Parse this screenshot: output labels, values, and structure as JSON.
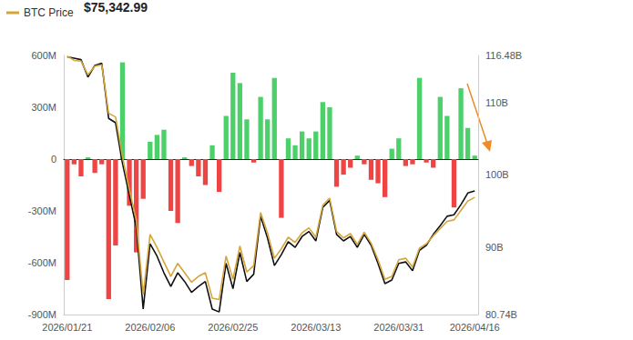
{
  "chart_data": {
    "type": "bar",
    "annotation": "$75,342.99",
    "legend": "top-left",
    "grid": false,
    "categories": [
      "2026/01/21",
      null,
      null,
      null,
      null,
      null,
      null,
      null,
      null,
      null,
      null,
      null,
      "2026/02/06",
      null,
      null,
      null,
      null,
      null,
      null,
      null,
      null,
      null,
      null,
      null,
      "2026/02/25",
      null,
      null,
      null,
      null,
      null,
      null,
      null,
      null,
      null,
      null,
      null,
      "2026/03/13",
      null,
      null,
      null,
      null,
      null,
      null,
      null,
      null,
      null,
      null,
      null,
      "2026/03/31",
      null,
      null,
      null,
      null,
      null,
      null,
      null,
      null,
      null,
      null,
      "2026/04/16"
    ],
    "series": [
      {
        "type": "bar",
        "values": [
          -700,
          -30,
          -100,
          10,
          -80,
          -30,
          -810,
          -500,
          560,
          -270,
          -540,
          -230,
          100,
          140,
          170,
          -300,
          -370,
          10,
          -40,
          -100,
          -150,
          80,
          -190,
          250,
          500,
          440,
          230,
          -20,
          360,
          230,
          470,
          -340,
          120,
          80,
          160,
          120,
          160,
          330,
          300,
          -160,
          -90,
          -50,
          20,
          -30,
          -120,
          -140,
          -220,
          60,
          120,
          -40,
          -30,
          470,
          -20,
          -50,
          360,
          250,
          -280,
          410,
          180,
          20
        ],
        "colors": [
          "#ef4444",
          "#ef4444",
          "#ef4444",
          "#4cd06a",
          "#ef4444",
          "#ef4444",
          "#ef4444",
          "#ef4444",
          "#4cd06a",
          "#ef4444",
          "#ef4444",
          "#ef4444",
          "#4cd06a",
          "#4cd06a",
          "#4cd06a",
          "#ef4444",
          "#ef4444",
          "#4cd06a",
          "#ef4444",
          "#ef4444",
          "#ef4444",
          "#4cd06a",
          "#ef4444",
          "#4cd06a",
          "#4cd06a",
          "#4cd06a",
          "#4cd06a",
          "#ef4444",
          "#4cd06a",
          "#4cd06a",
          "#4cd06a",
          "#ef4444",
          "#4cd06a",
          "#4cd06a",
          "#4cd06a",
          "#4cd06a",
          "#4cd06a",
          "#4cd06a",
          "#4cd06a",
          "#ef4444",
          "#ef4444",
          "#ef4444",
          "#4cd06a",
          "#ef4444",
          "#ef4444",
          "#ef4444",
          "#ef4444",
          "#4cd06a",
          "#4cd06a",
          "#ef4444",
          "#ef4444",
          "#4cd06a",
          "#ef4444",
          "#ef4444",
          "#4cd06a",
          "#4cd06a",
          "#ef4444",
          "#4cd06a",
          "#4cd06a",
          "#4cd06a"
        ]
      },
      {
        "type": "line",
        "axis": "y2",
        "color": "#111111",
        "values": [
          116.3,
          116.1,
          115.9,
          113.5,
          115.1,
          115.4,
          107.8,
          107.2,
          101.6,
          97.2,
          92.8,
          81.5,
          90.5,
          88.8,
          86.5,
          84.6,
          86.5,
          85.3,
          83.8,
          84.6,
          85.3,
          81.5,
          81.1,
          87.8,
          84.3,
          89.3,
          85.3,
          86.3,
          94.3,
          91.3,
          87.5,
          89.0,
          90.8,
          90.0,
          91.5,
          92.2,
          90.9,
          95.5,
          96.5,
          91.8,
          90.9,
          91.5,
          90.0,
          91.8,
          90.3,
          87.8,
          85.0,
          85.5,
          87.8,
          88.0,
          86.8,
          89.6,
          90.3,
          91.8,
          93.0,
          94.3,
          94.5,
          95.9,
          97.5,
          97.8
        ]
      },
      {
        "name": "BTC Price",
        "type": "line",
        "axis": "y2",
        "color": "#d4a53a",
        "values": [
          116.4,
          115.8,
          115.7,
          113.8,
          115.0,
          115.2,
          108.5,
          108.0,
          102.5,
          98.0,
          93.8,
          83.5,
          91.8,
          90.0,
          88.0,
          86.0,
          87.8,
          86.5,
          85.2,
          86.0,
          86.5,
          83.0,
          82.8,
          88.8,
          85.6,
          90.2,
          86.6,
          87.5,
          94.8,
          92.0,
          88.5,
          89.8,
          91.4,
          90.7,
          92.0,
          92.7,
          91.4,
          95.8,
          96.8,
          92.2,
          91.3,
          91.9,
          90.4,
          92.1,
          90.6,
          88.3,
          85.6,
          86.0,
          88.3,
          88.5,
          87.3,
          89.9,
          90.5,
          91.6,
          92.6,
          93.6,
          93.8,
          95.1,
          96.4,
          96.9
        ]
      }
    ],
    "ylim": [
      -900,
      600
    ],
    "yticks": [
      {
        "value": -900,
        "label": "-900M"
      },
      {
        "value": -600,
        "label": "-600M"
      },
      {
        "value": -300,
        "label": "-300M"
      },
      0,
      {
        "value": 300,
        "label": "300M"
      },
      {
        "value": 600,
        "label": "600M"
      }
    ],
    "y2lim": [
      80.74,
      116.48
    ],
    "y2ticks": [
      {
        "value": 80.74,
        "label": "80.74B"
      },
      {
        "value": 90,
        "label": "90B"
      },
      {
        "value": 100,
        "label": "100B"
      },
      {
        "value": 110,
        "label": "110B"
      },
      {
        "value": 116.48,
        "label": "116.48B"
      }
    ]
  }
}
